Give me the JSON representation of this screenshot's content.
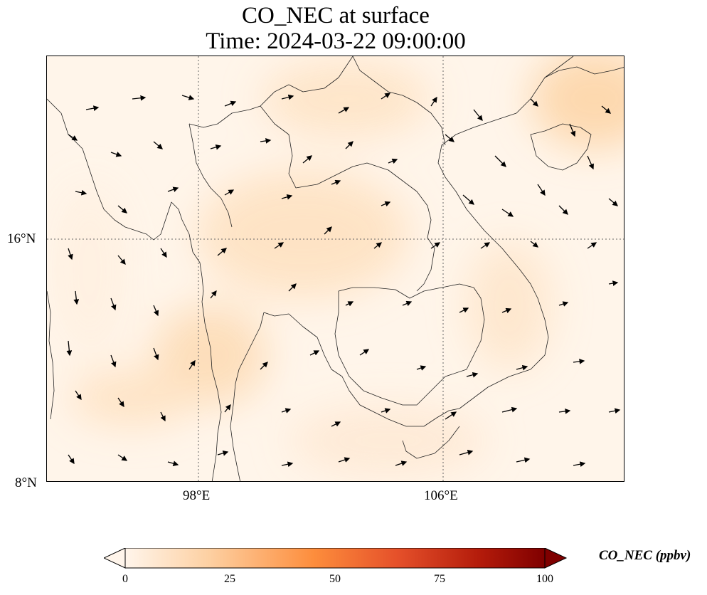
{
  "title_line1": "CO_NEC at surface",
  "title_line2": "Time: 2024-03-22 09:00:00",
  "lat_labels": {
    "lat16": "16°N",
    "lat8": "8°N"
  },
  "lon_labels": {
    "lon98": "98°E",
    "lon106": "106°E"
  },
  "colorbar": {
    "title": "CO_NEC (ppbv)",
    "ticks": [
      "0",
      "25",
      "50",
      "75",
      "100"
    ],
    "colors": [
      "#fff5eb",
      "#fdd0a2",
      "#fd8d3c",
      "#e5502a",
      "#b21a0a",
      "#7f0000"
    ]
  },
  "map_colors": {
    "background": "#fff4e6",
    "plume": "#fddcb4",
    "coast": "#222222"
  },
  "overlay": "wind vectors"
}
